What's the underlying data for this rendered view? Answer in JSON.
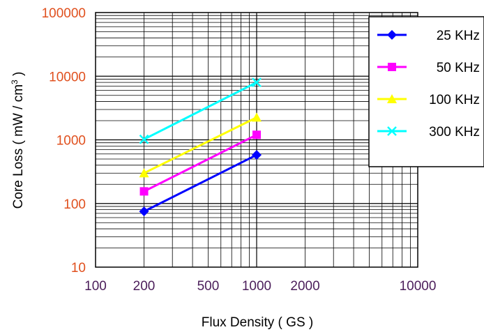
{
  "chart_data": {
    "type": "line",
    "title": "",
    "xlabel": "Flux Density ( GS )",
    "ylabel_main": "Core Loss ( mW / cm",
    "ylabel_sup": "3",
    "ylabel_tail": " )",
    "x_scale": "log",
    "y_scale": "log",
    "xlim": [
      100,
      10000
    ],
    "ylim": [
      10,
      100000
    ],
    "x_ticks": [
      100,
      200,
      500,
      1000,
      2000,
      10000
    ],
    "x_tick_labels": [
      "100",
      "200",
      "500",
      "1000",
      "2000",
      "10000"
    ],
    "y_ticks": [
      10,
      100,
      1000,
      10000,
      100000
    ],
    "y_tick_labels": [
      "10",
      "100",
      "1000",
      "10000",
      "100000"
    ],
    "x_tick_color": "#4B1E5A",
    "y_tick_color": "#E0501E",
    "grid": true,
    "legend_position": "top-right",
    "series": [
      {
        "name": "25 KHz",
        "color": "#0000FF",
        "marker": "diamond",
        "x": [
          200,
          1000
        ],
        "y": [
          75,
          580
        ]
      },
      {
        "name": "50 KHz",
        "color": "#FF00FF",
        "marker": "square",
        "x": [
          200,
          1000
        ],
        "y": [
          155,
          1200
        ]
      },
      {
        "name": "100 KHz",
        "color": "#FFFF00",
        "marker": "triangle",
        "x": [
          200,
          1000
        ],
        "y": [
          300,
          2250
        ]
      },
      {
        "name": "300 KHz",
        "color": "#00FFFF",
        "marker": "x",
        "x": [
          200,
          1000
        ],
        "y": [
          1020,
          8000
        ]
      }
    ]
  }
}
